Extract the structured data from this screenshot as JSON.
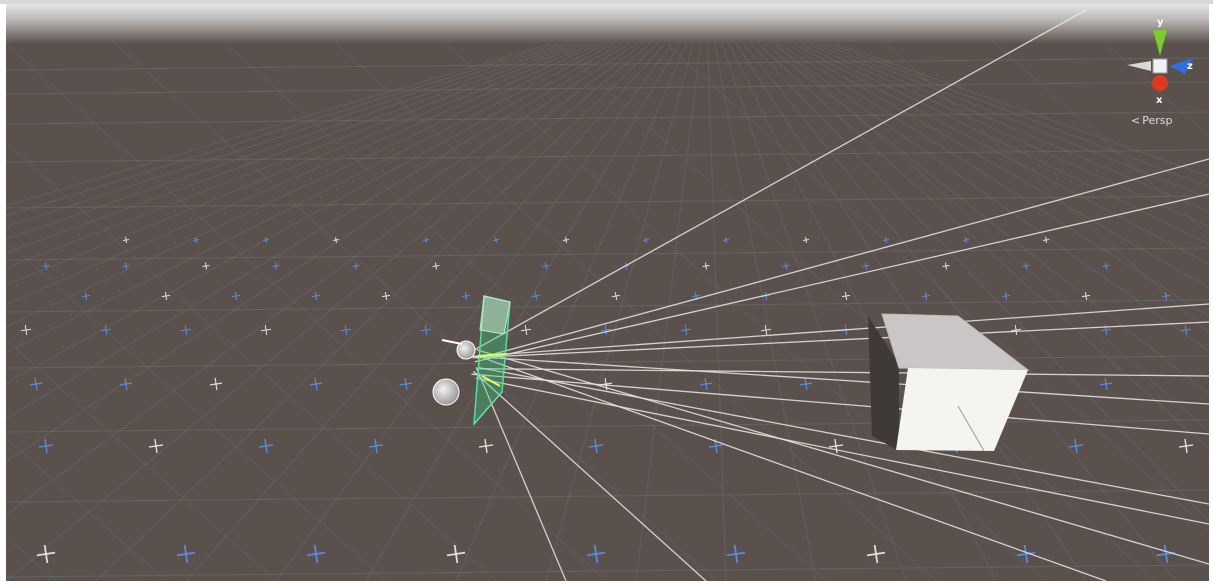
{
  "scene_view": {
    "gizmo": {
      "axis_y": "y",
      "axis_z": "z",
      "axis_x": "x",
      "projection_label": "Persp",
      "projection_icon": "chevron-left-icon",
      "colors": {
        "y": "#7ccc2e",
        "z": "#2f6fe0",
        "x": "#e0391d",
        "neg_axis": "#d8d8d8"
      }
    },
    "colors": {
      "ground": "#5a514d",
      "sky": "#d6d8da",
      "grid_line": "#7f8fa6",
      "blue_marker": "#5b8de8",
      "white_marker": "#e6e6e6",
      "ray": "#e9e9e9",
      "frustum": "#33d17a",
      "cube_front": "#f4f4f1",
      "cube_top": "#c9c6c5"
    }
  }
}
